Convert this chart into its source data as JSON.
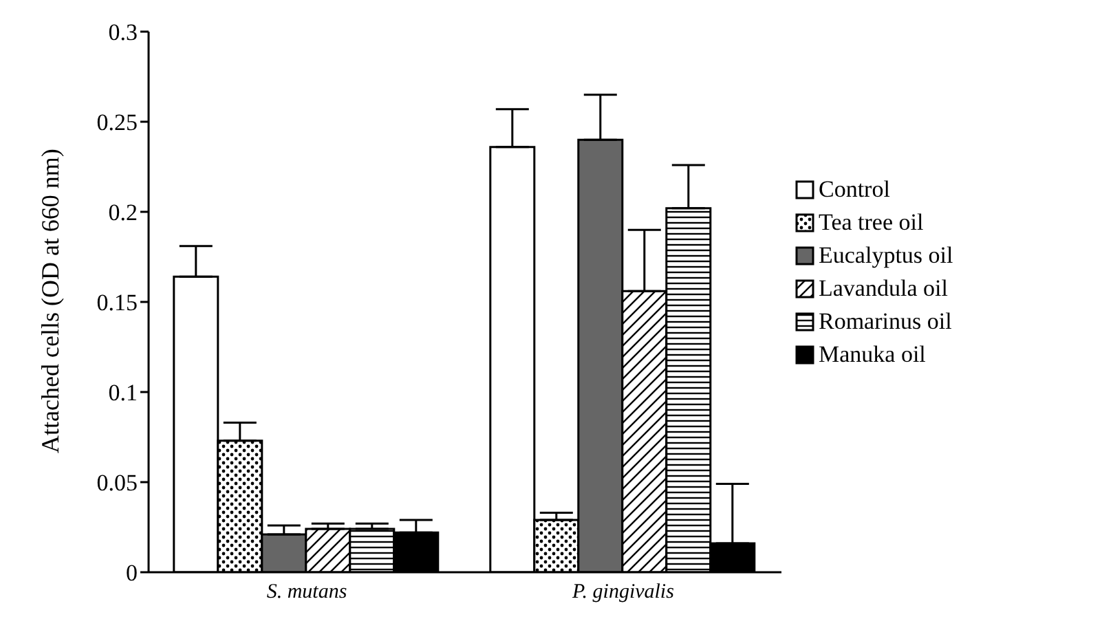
{
  "chart_data": {
    "type": "bar",
    "ylabel": "Attached cells (OD at 660 nm)",
    "categories": [
      "S. mutans",
      "P. gingivalis"
    ],
    "series": [
      {
        "name": "Control",
        "color": "#ffffff",
        "values": [
          0.164,
          0.236
        ],
        "errors": [
          [
            0.164,
            0.181
          ],
          [
            0.236,
            0.257
          ]
        ]
      },
      {
        "name": "Tea tree oil",
        "color": "#000000",
        "values": [
          0.073,
          0.029
        ],
        "errors": [
          [
            0.073,
            0.083
          ],
          [
            0.029,
            0.033
          ]
        ]
      },
      {
        "name": "Eucalyptus oil",
        "color": "#666666",
        "values": [
          0.021,
          0.24
        ],
        "errors": [
          [
            0.021,
            0.026
          ],
          [
            0.24,
            0.265
          ]
        ]
      },
      {
        "name": "Lavandula oil",
        "color": "#000000",
        "values": [
          0.024,
          0.156
        ],
        "errors": [
          [
            0.024,
            0.027
          ],
          [
            0.156,
            0.19
          ]
        ]
      },
      {
        "name": "Romarinus oil",
        "color": "#000000",
        "values": [
          0.024,
          0.202
        ],
        "errors": [
          [
            0.024,
            0.027
          ],
          [
            0.202,
            0.226
          ]
        ]
      },
      {
        "name": "Manuka oil",
        "color": "#000000",
        "values": [
          0.022,
          0.016
        ],
        "errors": [
          [
            0.022,
            0.029
          ],
          [
            0.016,
            0.049
          ]
        ]
      }
    ],
    "ylim": [
      0,
      0.3
    ],
    "yticks": [
      0,
      0.05,
      0.1,
      0.15,
      0.2,
      0.25,
      0.3
    ],
    "grid": false,
    "legend": "right"
  }
}
